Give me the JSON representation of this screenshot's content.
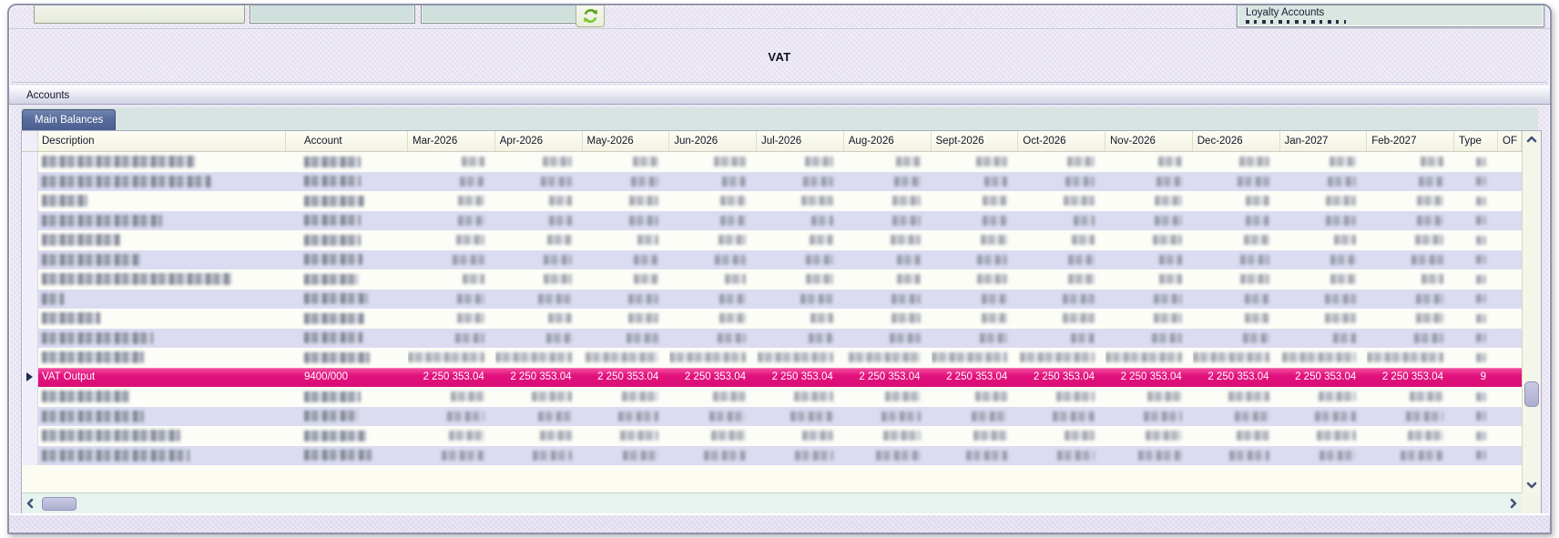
{
  "window": {
    "title": "VAT"
  },
  "toolbar": {
    "refresh_icon": "refresh-circular-arrows-icon",
    "inputs": [
      {
        "value": ""
      },
      {
        "value": ""
      }
    ],
    "dropdown": {
      "visible_item": "Loyalty Accounts"
    }
  },
  "sections": {
    "accounts_label": "Accounts",
    "tab_label": "Main Balances"
  },
  "colors": {
    "highlight_row": "#e2127e",
    "row_stripe": "#dbdbf2",
    "tab_selected": "#54689a",
    "window_background": "#e6e1f1"
  },
  "table": {
    "columns": [
      "Description",
      "Account",
      "Mar-2026",
      "Apr-2026",
      "May-2026",
      "Jun-2026",
      "Jul-2026",
      "Aug-2026",
      "Sept-2026",
      "Oct-2026",
      "Nov-2026",
      "Dec-2026",
      "Jan-2027",
      "Feb-2027",
      "Type",
      "OF"
    ],
    "month_column_count": 12,
    "rows": [
      {
        "kind": "redacted",
        "desc_w": 168,
        "acct_w": 62,
        "val_w": 30
      },
      {
        "kind": "redacted",
        "desc_w": 186,
        "acct_w": 62,
        "val_w": 30
      },
      {
        "kind": "redacted",
        "desc_w": 50,
        "acct_w": 66,
        "val_w": 30
      },
      {
        "kind": "redacted",
        "desc_w": 132,
        "acct_w": 62,
        "val_w": 28
      },
      {
        "kind": "redacted",
        "desc_w": 86,
        "acct_w": 62,
        "val_w": 28
      },
      {
        "kind": "redacted",
        "desc_w": 108,
        "acct_w": 64,
        "val_w": 30
      },
      {
        "kind": "redacted",
        "desc_w": 208,
        "acct_w": 60,
        "val_w": 28
      },
      {
        "kind": "redacted",
        "desc_w": 24,
        "acct_w": 70,
        "val_w": 32
      },
      {
        "kind": "redacted",
        "desc_w": 64,
        "acct_w": 66,
        "val_w": 30
      },
      {
        "kind": "redacted",
        "desc_w": 122,
        "acct_w": 64,
        "val_w": 30
      },
      {
        "kind": "redacted",
        "desc_w": 112,
        "acct_w": 72,
        "val_w": 84
      },
      {
        "kind": "data",
        "description": "VAT Output",
        "account": "9400/000",
        "values": [
          "2 250 353.04",
          "2 250 353.04",
          "2 250 353.04",
          "2 250 353.04",
          "2 250 353.04",
          "2 250 353.04",
          "2 250 353.04",
          "2 250 353.04",
          "2 250 353.04",
          "2 250 353.04",
          "2 250 353.04",
          "2 250 353.04"
        ],
        "type": "9",
        "selected": true
      },
      {
        "kind": "redacted",
        "desc_w": 96,
        "acct_w": 62,
        "val_w": 40
      },
      {
        "kind": "redacted",
        "desc_w": 112,
        "acct_w": 60,
        "val_w": 42
      },
      {
        "kind": "redacted",
        "desc_w": 152,
        "acct_w": 68,
        "val_w": 38
      },
      {
        "kind": "redacted",
        "desc_w": 162,
        "acct_w": 74,
        "val_w": 44
      }
    ]
  }
}
